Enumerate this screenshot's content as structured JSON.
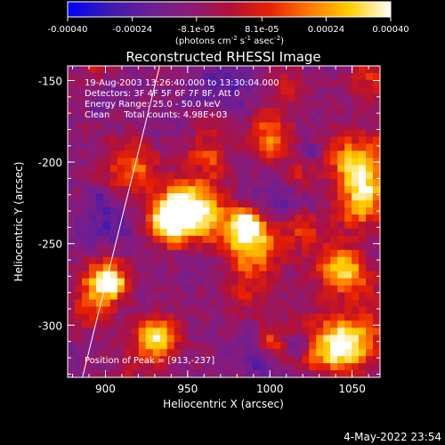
{
  "colorbar": {
    "tick_labels": [
      "-0.00040",
      "-0.00024",
      "-8.1e-05",
      "8.1e-05",
      "0.00024",
      "0.00040"
    ],
    "tick_values": [
      -0.0004,
      -0.00024,
      -8.1e-05,
      8.1e-05,
      0.00024,
      0.0004
    ],
    "range": [
      -0.0004,
      0.0004
    ],
    "units": "(photons cm",
    "units_exp1": "-2",
    "units_mid": " s",
    "units_exp2": "-1",
    "units_tail": " asec",
    "units_exp3": "-2",
    "units_close": ")",
    "colors": [
      "#0000ff",
      "#3a1ab0",
      "#6a1e96",
      "#8a1c7a",
      "#b0103a",
      "#e82000",
      "#ff7a00",
      "#ffd000",
      "#ffffff"
    ]
  },
  "chart_data": {
    "type": "heatmap",
    "title": "Reconstructed RHESSI Image",
    "xlabel": "Heliocentric X (arcsec)",
    "ylabel": "Heliocentric Y (arcsec)",
    "xlim": [
      877,
      1067
    ],
    "ylim": [
      -332,
      -141
    ],
    "x_ticks": [
      900,
      950,
      1000,
      1050
    ],
    "x_tick_labels": [
      "900",
      "950",
      "1000",
      "1050"
    ],
    "y_ticks": [
      -150,
      -200,
      -250,
      -300
    ],
    "y_tick_labels": [
      "-150",
      "-200",
      "-250",
      "-300"
    ],
    "limb_line": [
      [
        886,
        -332
      ],
      [
        933,
        -141
      ]
    ],
    "peak": [
      913,
      -237
    ]
  },
  "annotations": {
    "time": "19-Aug-2003 13:26:40.000 to 13:30:04.000",
    "detectors": "Detectors: 3F 4F 5F 6F 7F 8F, Att 0",
    "energy": "Energy Range: 25.0 - 50.0 keV",
    "algorithm": "Clean     Total counts: 4.98E+03",
    "peak_text": "Position of Peak = [913,-237]"
  },
  "footer": {
    "date": "4-May-2022 23:54"
  }
}
